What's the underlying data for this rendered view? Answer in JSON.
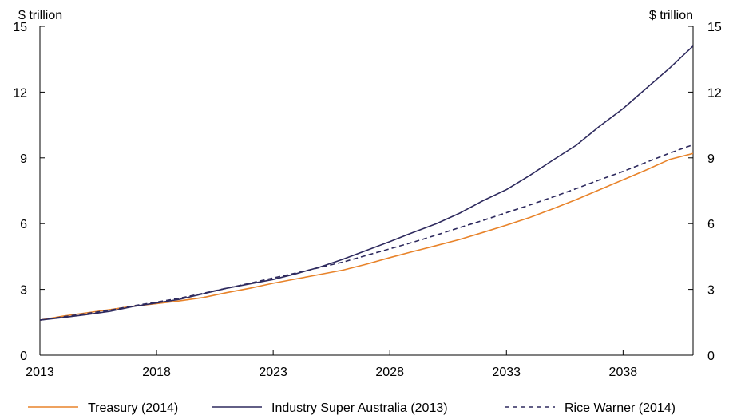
{
  "chart_data": {
    "type": "line",
    "title": "",
    "xlabel": "",
    "ylabel_left": "$ trillion",
    "ylabel_right": "$ trillion",
    "xlim": [
      2013,
      2041
    ],
    "ylim": [
      0,
      15
    ],
    "xticks": [
      "2013",
      "2018",
      "2023",
      "2028",
      "2033",
      "2038"
    ],
    "yticks": [
      "0",
      "3",
      "6",
      "9",
      "12",
      "15"
    ],
    "grid": false,
    "legend_position": "bottom",
    "series": [
      {
        "name": "Treasury (2014)",
        "color": "#E8832A",
        "style": "solid",
        "x": [
          2013,
          2014,
          2015,
          2016,
          2017,
          2018,
          2019,
          2020,
          2021,
          2022,
          2023,
          2024,
          2025,
          2026,
          2027,
          2028,
          2029,
          2030,
          2031,
          2032,
          2033,
          2034,
          2035,
          2036,
          2037,
          2038,
          2039,
          2040,
          2041
        ],
        "y": [
          1.6,
          1.78,
          1.93,
          2.08,
          2.23,
          2.35,
          2.48,
          2.63,
          2.85,
          3.05,
          3.28,
          3.48,
          3.68,
          3.88,
          4.15,
          4.45,
          4.73,
          5.0,
          5.28,
          5.6,
          5.93,
          6.28,
          6.68,
          7.1,
          7.55,
          8.0,
          8.45,
          8.93,
          9.2
        ]
      },
      {
        "name": "Industry Super Australia (2013)",
        "color": "#2E2A5E",
        "style": "solid",
        "x": [
          2013,
          2014,
          2015,
          2016,
          2017,
          2018,
          2019,
          2020,
          2021,
          2022,
          2023,
          2024,
          2025,
          2026,
          2027,
          2028,
          2029,
          2030,
          2031,
          2032,
          2033,
          2034,
          2035,
          2036,
          2037,
          2038,
          2039,
          2040,
          2041
        ],
        "y": [
          1.6,
          1.72,
          1.85,
          2.0,
          2.22,
          2.38,
          2.55,
          2.8,
          3.05,
          3.25,
          3.45,
          3.72,
          4.02,
          4.38,
          4.78,
          5.18,
          5.6,
          6.0,
          6.48,
          7.05,
          7.55,
          8.2,
          8.9,
          9.58,
          10.45,
          11.25,
          12.18,
          13.1,
          14.1
        ]
      },
      {
        "name": "Rice Warner (2014)",
        "color": "#2E2A5E",
        "style": "dashed",
        "x": [
          2013,
          2014,
          2015,
          2016,
          2017,
          2018,
          2019,
          2020,
          2021,
          2022,
          2023,
          2024,
          2025,
          2026,
          2027,
          2028,
          2029,
          2030,
          2031,
          2032,
          2033,
          2034,
          2035,
          2036,
          2037,
          2038,
          2039,
          2040,
          2041
        ],
        "y": [
          1.6,
          1.75,
          1.9,
          2.05,
          2.25,
          2.42,
          2.6,
          2.82,
          3.05,
          3.28,
          3.52,
          3.75,
          4.0,
          4.25,
          4.55,
          4.85,
          5.15,
          5.48,
          5.82,
          6.15,
          6.5,
          6.85,
          7.22,
          7.6,
          8.0,
          8.38,
          8.8,
          9.22,
          9.6
        ]
      }
    ]
  }
}
